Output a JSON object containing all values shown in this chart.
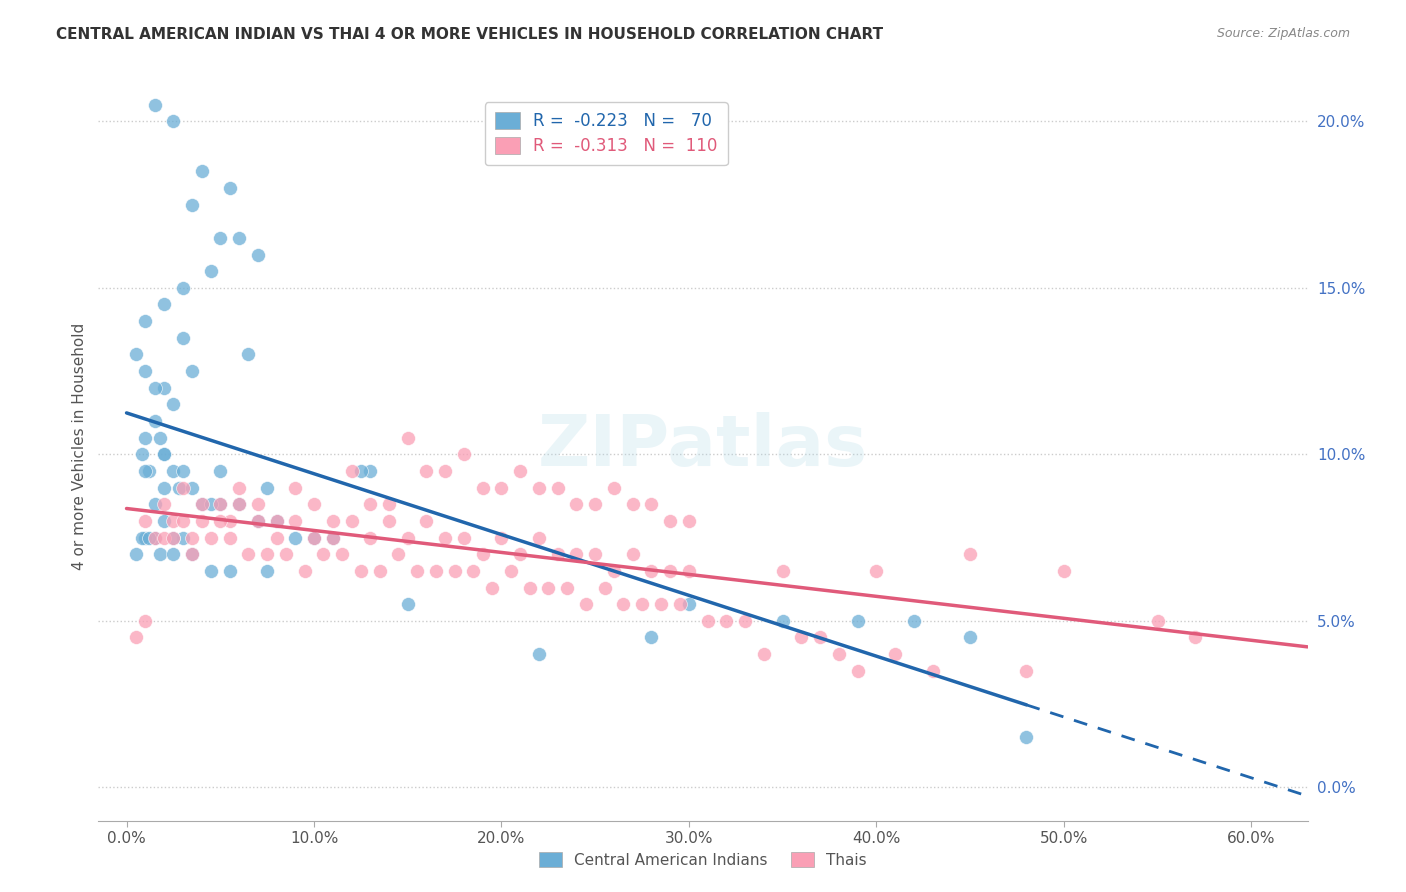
{
  "title": "CENTRAL AMERICAN INDIAN VS THAI 4 OR MORE VEHICLES IN HOUSEHOLD CORRELATION CHART",
  "source": "Source: ZipAtlas.com",
  "xlabel_ticks": [
    "0.0%",
    "10.0%",
    "20.0%",
    "30.0%",
    "40.0%",
    "50.0%",
    "60.0%"
  ],
  "xlabel_vals": [
    0.0,
    10.0,
    20.0,
    30.0,
    40.0,
    50.0,
    60.0
  ],
  "ylabel_ticks": [
    "0.0%",
    "5.0%",
    "10.0%",
    "15.0%",
    "20.0%"
  ],
  "ylabel_vals": [
    0.0,
    5.0,
    10.0,
    15.0,
    20.0
  ],
  "ylabel_label": "4 or more Vehicles in Household",
  "xlim": [
    -1.5,
    63
  ],
  "ylim": [
    -1.0,
    21.5
  ],
  "legend_blue_label": "Central American Indians",
  "legend_pink_label": "Thais",
  "legend_blue_r": "R = -0.223",
  "legend_blue_n": "N =  70",
  "legend_pink_r": "R = -0.313",
  "legend_pink_n": "N = 110",
  "blue_color": "#6baed6",
  "pink_color": "#fa9fb5",
  "blue_line_color": "#2166ac",
  "pink_line_color": "#e05a7a",
  "watermark": "ZIPatlas",
  "blue_scatter_x": [
    1.5,
    2.5,
    4.0,
    5.5,
    3.5,
    6.0,
    7.0,
    5.0,
    4.5,
    3.0,
    2.0,
    1.0,
    0.5,
    1.0,
    2.0,
    3.0,
    2.5,
    1.5,
    1.0,
    0.8,
    1.2,
    2.0,
    1.8,
    2.5,
    3.5,
    1.5,
    2.0,
    3.0,
    5.0,
    6.5,
    13.0,
    12.5,
    7.5,
    1.0,
    1.5,
    2.0,
    2.8,
    3.5,
    4.0,
    5.0,
    6.0,
    7.0,
    8.0,
    9.0,
    10.0,
    11.0,
    4.5,
    3.0,
    2.5,
    2.0,
    1.5,
    1.0,
    0.5,
    0.8,
    1.2,
    1.8,
    2.5,
    3.5,
    4.5,
    5.5,
    7.5,
    15.0,
    30.0,
    35.0,
    39.0,
    42.0,
    28.0,
    45.0,
    22.0,
    48.0
  ],
  "blue_scatter_y": [
    20.5,
    20.0,
    18.5,
    18.0,
    17.5,
    16.5,
    16.0,
    16.5,
    15.5,
    15.0,
    14.5,
    14.0,
    13.0,
    12.5,
    12.0,
    13.5,
    11.5,
    12.0,
    10.5,
    10.0,
    9.5,
    10.0,
    10.5,
    9.5,
    12.5,
    11.0,
    10.0,
    9.5,
    9.5,
    13.0,
    9.5,
    9.5,
    9.0,
    9.5,
    8.5,
    9.0,
    9.0,
    9.0,
    8.5,
    8.5,
    8.5,
    8.0,
    8.0,
    7.5,
    7.5,
    7.5,
    8.5,
    7.5,
    7.5,
    8.0,
    7.5,
    7.5,
    7.0,
    7.5,
    7.5,
    7.0,
    7.0,
    7.0,
    6.5,
    6.5,
    6.5,
    5.5,
    5.5,
    5.0,
    5.0,
    5.0,
    4.5,
    4.5,
    4.0,
    1.5
  ],
  "pink_scatter_x": [
    0.5,
    1.0,
    1.5,
    2.0,
    2.5,
    3.0,
    3.5,
    4.0,
    5.0,
    5.5,
    6.0,
    7.0,
    8.0,
    9.0,
    10.0,
    11.0,
    12.0,
    13.0,
    14.0,
    15.0,
    16.0,
    17.0,
    18.0,
    19.0,
    20.0,
    21.0,
    22.0,
    23.0,
    24.0,
    25.0,
    26.0,
    27.0,
    28.0,
    29.0,
    30.0,
    2.0,
    3.0,
    4.0,
    5.0,
    6.0,
    7.0,
    8.0,
    9.0,
    10.0,
    11.0,
    12.0,
    13.0,
    14.0,
    15.0,
    16.0,
    17.0,
    18.0,
    19.0,
    20.0,
    21.0,
    22.0,
    23.0,
    24.0,
    25.0,
    26.0,
    27.0,
    28.0,
    29.0,
    30.0,
    35.0,
    40.0,
    45.0,
    50.0,
    55.0,
    57.0,
    1.0,
    2.5,
    3.5,
    4.5,
    5.5,
    6.5,
    7.5,
    8.5,
    9.5,
    10.5,
    11.5,
    12.5,
    13.5,
    14.5,
    15.5,
    16.5,
    17.5,
    18.5,
    19.5,
    20.5,
    21.5,
    22.5,
    23.5,
    24.5,
    25.5,
    26.5,
    27.5,
    28.5,
    29.5,
    31.0,
    32.0,
    33.0,
    34.0,
    36.0,
    37.0,
    38.0,
    39.0,
    41.0,
    43.0,
    48.0
  ],
  "pink_scatter_y": [
    4.5,
    8.0,
    7.5,
    8.5,
    8.0,
    9.0,
    7.5,
    8.0,
    8.5,
    8.0,
    9.0,
    8.5,
    8.0,
    9.0,
    8.5,
    8.0,
    9.5,
    8.5,
    8.5,
    10.5,
    9.5,
    9.5,
    10.0,
    9.0,
    9.0,
    9.5,
    9.0,
    9.0,
    8.5,
    8.5,
    9.0,
    8.5,
    8.5,
    8.0,
    8.0,
    7.5,
    8.0,
    8.5,
    8.0,
    8.5,
    8.0,
    7.5,
    8.0,
    7.5,
    7.5,
    8.0,
    7.5,
    8.0,
    7.5,
    8.0,
    7.5,
    7.5,
    7.0,
    7.5,
    7.0,
    7.5,
    7.0,
    7.0,
    7.0,
    6.5,
    7.0,
    6.5,
    6.5,
    6.5,
    6.5,
    6.5,
    7.0,
    6.5,
    5.0,
    4.5,
    5.0,
    7.5,
    7.0,
    7.5,
    7.5,
    7.0,
    7.0,
    7.0,
    6.5,
    7.0,
    7.0,
    6.5,
    6.5,
    7.0,
    6.5,
    6.5,
    6.5,
    6.5,
    6.0,
    6.5,
    6.0,
    6.0,
    6.0,
    5.5,
    6.0,
    5.5,
    5.5,
    5.5,
    5.5,
    5.0,
    5.0,
    5.0,
    4.0,
    4.5,
    4.5,
    4.0,
    3.5,
    4.0,
    3.5,
    3.5
  ]
}
